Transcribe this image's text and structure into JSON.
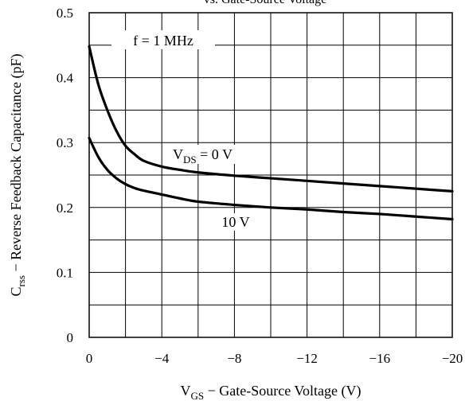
{
  "chart_data": {
    "type": "line",
    "title": "vs. Gate-Source Voltage",
    "xlabel": {
      "main": "V",
      "sub": "GS",
      "rest": " − Gate-Source Voltage (V)"
    },
    "ylabel": {
      "main": "C",
      "sub": "rss",
      "rest": "  − Reverse Feedback Capacitance (pF)"
    },
    "xlim": [
      0,
      -20
    ],
    "ylim": [
      0,
      0.5
    ],
    "grid": true,
    "x_ticks": [
      0,
      -2,
      -4,
      -6,
      -8,
      -10,
      -12,
      -14,
      -16,
      -18,
      -20
    ],
    "y_ticks": [
      0,
      0.05,
      0.1,
      0.15,
      0.2,
      0.25,
      0.3,
      0.35,
      0.4,
      0.45,
      0.5
    ],
    "x_tick_labels": [
      {
        "value": 0,
        "text": "0"
      },
      {
        "value": -4,
        "text": "−4"
      },
      {
        "value": -8,
        "text": "−8"
      },
      {
        "value": -12,
        "text": "−12"
      },
      {
        "value": -16,
        "text": "−16"
      },
      {
        "value": -20,
        "text": "−20"
      }
    ],
    "y_tick_labels": [
      {
        "value": 0,
        "text": "0"
      },
      {
        "value": 0.1,
        "text": "0.1"
      },
      {
        "value": 0.2,
        "text": "0.2"
      },
      {
        "value": 0.3,
        "text": "0.3"
      },
      {
        "value": 0.4,
        "text": "0.4"
      },
      {
        "value": 0.5,
        "text": "0.5"
      }
    ],
    "annotations": {
      "frequency": "f = 1 MHz",
      "vds0": {
        "main": "V",
        "sub": "DS",
        "rest": " = 0 V"
      },
      "vds10": "10 V"
    },
    "series": [
      {
        "label": "VDS = 0 V",
        "x": [
          0,
          -0.5,
          -1,
          -1.5,
          -2,
          -2.5,
          -3,
          -4,
          -5,
          -6,
          -8,
          -10,
          -12,
          -14,
          -16,
          -18,
          -20
        ],
        "y": [
          0.448,
          0.39,
          0.35,
          0.318,
          0.295,
          0.282,
          0.272,
          0.263,
          0.258,
          0.254,
          0.249,
          0.245,
          0.241,
          0.237,
          0.233,
          0.229,
          0.225
        ]
      },
      {
        "label": "VDS = 10 V",
        "x": [
          0,
          -0.5,
          -1,
          -1.5,
          -2,
          -2.5,
          -3,
          -4,
          -5,
          -6,
          -8,
          -10,
          -12,
          -14,
          -16,
          -18,
          -20
        ],
        "y": [
          0.307,
          0.278,
          0.258,
          0.245,
          0.236,
          0.23,
          0.226,
          0.22,
          0.214,
          0.209,
          0.204,
          0.2,
          0.197,
          0.193,
          0.19,
          0.186,
          0.182
        ]
      }
    ]
  }
}
